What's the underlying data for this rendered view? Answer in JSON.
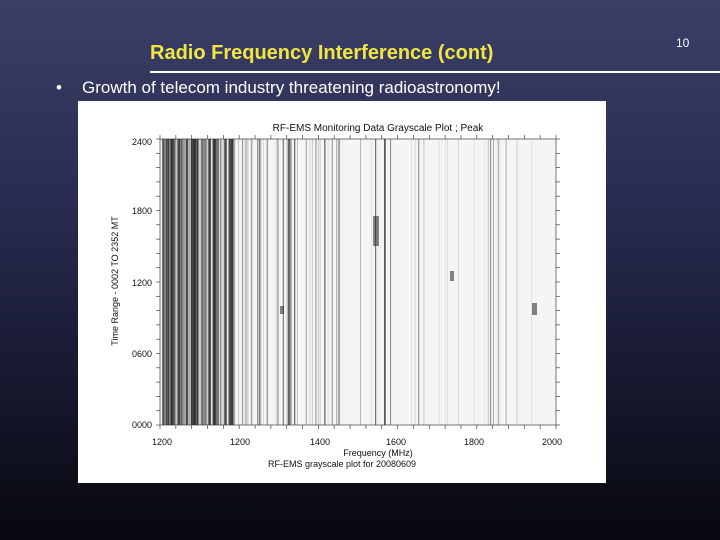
{
  "slide": {
    "title": "Radio Frequency Interference (cont)",
    "number": "10",
    "bullet": "Growth of telecom industry threatening radioastronomy!"
  },
  "figure": {
    "title": "RF-EMS Monitoring Data Grayscale Plot ; Peak",
    "ylabel": "Time Range - 0002 TO 2352 MT",
    "xlabel": "Frequency (MHz)",
    "caption": "RF-EMS grayscale plot for 20080609",
    "x_ticks": [
      "1200",
      "1200",
      "1400",
      "1600",
      "1800",
      "2000"
    ],
    "y_ticks": [
      "2400",
      "1800",
      "1200",
      "0600",
      "0000"
    ],
    "colors": {
      "dark": "#333333",
      "background": "#f3f3f3"
    }
  }
}
